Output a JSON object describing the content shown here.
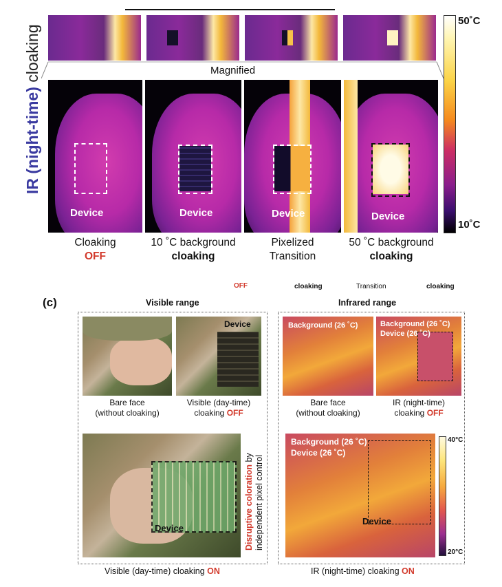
{
  "top_panel": {
    "side_label_colored": "IR (night-time)",
    "side_label_plain": " cloaking",
    "magnified": "Magnified",
    "device_label": "Device",
    "colorbar_max": "50˚C",
    "colorbar_min": "10˚C",
    "captions": [
      {
        "line1": "Cloaking",
        "line2": "OFF"
      },
      {
        "line1": "10 ˚C background",
        "line2": "cloaking"
      },
      {
        "line1": "Pixelized",
        "line2": "Transition"
      },
      {
        "line1": "50 ˚C background",
        "line2": "cloaking"
      }
    ]
  },
  "stray_labels": [
    "OFF",
    "cloaking",
    "Transition",
    "cloaking"
  ],
  "panel_c": {
    "letter": "(c)",
    "visible_title": "Visible range",
    "infrared_title": "Infrared range",
    "visible": {
      "bare_face": "Bare face\n(without cloaking)",
      "visible_off_line1": "Visible (day-time)",
      "visible_off_line2": "cloaking ",
      "off": "OFF",
      "device": "Device",
      "side_label_red": "Disruptive coloration",
      "side_label_rest": " by",
      "side_label_line2": "independent pixel control",
      "bottom_caption": "Visible (day-time) cloaking ",
      "on": "ON"
    },
    "infrared": {
      "bg1": "Background (26 ˚C)",
      "bg2_line1": "Background (26 ˚C)",
      "bg2_line2": "Device (26 ˚C)",
      "bare_face": "Bare face\n(without cloaking)",
      "ir_off_line1": "IR (night-time)",
      "ir_off_line2": "cloaking ",
      "off": "OFF",
      "big_bg": "Background (26 ˚C)",
      "big_dev": "Device (26 ˚C)",
      "device": "Device",
      "colorbar_max": "40°C",
      "colorbar_min": "20°C",
      "bottom_caption": "IR (night-time) cloaking ",
      "on": "ON"
    }
  }
}
